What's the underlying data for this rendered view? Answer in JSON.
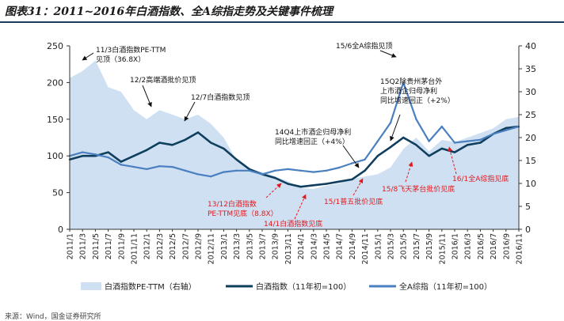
{
  "title": "图表31：2011~2016年白酒指数、全A综指走势及关键事件梳理",
  "source": "来源：Wind，国金证券研究所",
  "chart_data": {
    "type": "line",
    "x": [
      "2011/1",
      "2011/3",
      "2011/5",
      "2011/7",
      "2011/9",
      "2011/11",
      "2012/1",
      "2012/3",
      "2012/5",
      "2012/7",
      "2012/9",
      "2012/11",
      "2013/1",
      "2013/3",
      "2013/5",
      "2013/7",
      "2013/9",
      "2013/11",
      "2014/1",
      "2014/3",
      "2014/5",
      "2014/7",
      "2014/9",
      "2014/11",
      "2015/1",
      "2015/3",
      "2015/5",
      "2015/7",
      "2015/9",
      "2015/11",
      "2016/1",
      "2016/3",
      "2016/5",
      "2016/7",
      "2016/9",
      "2016/11"
    ],
    "left_axis": {
      "range": [
        0,
        250
      ],
      "ticks": [
        0,
        50,
        100,
        150,
        200,
        250
      ]
    },
    "right_axis": {
      "range": [
        0,
        40
      ],
      "ticks": [
        0,
        5,
        10,
        15,
        20,
        25,
        30,
        35,
        40
      ]
    },
    "series": [
      {
        "name": "白酒指数PE-TTM（右轴）",
        "type": "area",
        "axis": "right",
        "color": "#cfe0f2",
        "values": [
          33,
          34.5,
          36.8,
          31,
          30,
          26,
          24,
          26,
          25,
          24,
          25,
          23,
          20,
          15,
          13,
          12.5,
          11.5,
          10.5,
          9,
          8.8,
          9.5,
          10,
          11,
          11.5,
          12,
          13.5,
          17.5,
          20,
          17,
          19.5,
          19,
          20,
          21,
          22,
          24,
          24.5
        ]
      },
      {
        "name": "白酒指数（11年初=100）",
        "type": "line",
        "axis": "left",
        "color": "#0f3e5e",
        "values": [
          95,
          100,
          100,
          105,
          92,
          100,
          108,
          118,
          115,
          122,
          132,
          118,
          110,
          95,
          82,
          75,
          70,
          62,
          58,
          60,
          62,
          65,
          68,
          80,
          100,
          112,
          125,
          115,
          100,
          110,
          105,
          115,
          118,
          130,
          138,
          140
        ]
      },
      {
        "name": "全A综指（11年初=100）",
        "type": "line",
        "axis": "left",
        "color": "#4a7fc0",
        "values": [
          100,
          105,
          102,
          98,
          88,
          85,
          82,
          86,
          85,
          80,
          75,
          72,
          78,
          80,
          80,
          75,
          80,
          82,
          80,
          78,
          80,
          84,
          90,
          95,
          120,
          145,
          200,
          150,
          120,
          140,
          118,
          120,
          122,
          130,
          135,
          140
        ]
      }
    ],
    "annotations": [
      {
        "text": "11/3白酒指数PE-TTM",
        "text2": "见顶（36.8X）",
        "color": "black"
      },
      {
        "text": "12/2高端酒批价见顶",
        "color": "black"
      },
      {
        "text": "12/7白酒指数见顶",
        "color": "black"
      },
      {
        "text": "15/6全A综指见顶",
        "color": "black"
      },
      {
        "text": "15Q2除贵州茅台外",
        "text2": "上市酒企归母净利",
        "text3": "同比增速回正（+2%）",
        "color": "black"
      },
      {
        "text": "14Q4上市酒企归母净利",
        "text2": "同比增速回正（+4%）",
        "color": "black"
      },
      {
        "text": "13/12白酒指数",
        "text2": "PE-TTM见底（8.8X）",
        "color": "red"
      },
      {
        "text": "14/1白酒指数见底",
        "color": "red"
      },
      {
        "text": "15/1普五批价见底",
        "color": "red"
      },
      {
        "text": "15/8飞天茅台批价见底",
        "color": "red"
      },
      {
        "text": "16/1全A综指见底",
        "color": "red"
      }
    ]
  }
}
